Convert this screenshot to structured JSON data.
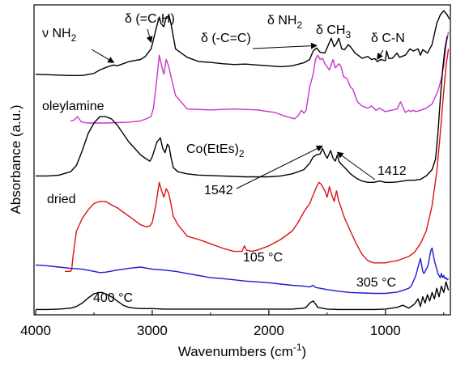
{
  "chart_data": {
    "type": "line",
    "xlabel": "Wavenumbers (cm⁻¹)",
    "ylabel": "Absorbance (a.u.)",
    "xlim": [
      4000,
      450
    ],
    "x_reversed": true,
    "x_ticks": [
      4000,
      3000,
      2000,
      1000
    ],
    "ylim": [
      0,
      7.2
    ],
    "y_ticks_shown": false,
    "grid": false,
    "series": [
      {
        "name": "oleylamine",
        "color": "#000000",
        "x": [
          4000,
          3800,
          3700,
          3600,
          3500,
          3450,
          3380,
          3330,
          3300,
          3200,
          3100,
          3060,
          3010,
          3000,
          2960,
          2940,
          2925,
          2900,
          2880,
          2855,
          2840,
          2820,
          2800,
          2700,
          2600,
          2500,
          2400,
          2300,
          2200,
          2100,
          2000,
          1900,
          1800,
          1700,
          1650,
          1620,
          1590,
          1560,
          1520,
          1465,
          1440,
          1420,
          1400,
          1375,
          1350,
          1320,
          1300,
          1260,
          1200,
          1150,
          1120,
          1090,
          1070,
          1040,
          1000,
          990,
          970,
          940,
          900,
          880,
          830,
          790,
          760,
          720,
          700,
          680,
          640,
          600,
          560,
          530,
          500,
          470,
          450
        ],
        "y": [
          5.6,
          5.58,
          5.57,
          5.57,
          5.62,
          5.7,
          5.78,
          5.82,
          5.8,
          5.9,
          5.95,
          6.02,
          6.2,
          6.3,
          6.75,
          6.95,
          6.8,
          6.72,
          6.95,
          6.98,
          6.8,
          6.5,
          6.2,
          6.0,
          5.9,
          5.88,
          5.85,
          5.83,
          5.84,
          5.82,
          5.8,
          5.78,
          5.8,
          5.87,
          5.95,
          6.15,
          6.22,
          6.12,
          6.1,
          6.45,
          6.25,
          6.33,
          6.45,
          6.2,
          6.18,
          6.3,
          6.25,
          6.1,
          5.98,
          6.02,
          5.95,
          5.97,
          5.9,
          5.95,
          5.92,
          6.15,
          5.97,
          5.98,
          6.1,
          6.0,
          6.05,
          6.2,
          6.15,
          6.2,
          6.05,
          6.18,
          6.1,
          6.3,
          6.8,
          7.0,
          7.1,
          7.0,
          6.9
        ]
      },
      {
        "name": "Co(EtEs)2",
        "color": "#cc33cc",
        "x": [
          3700,
          3670,
          3640,
          3610,
          3560,
          3500,
          3400,
          3300,
          3200,
          3100,
          3050,
          3010,
          2990,
          2960,
          2940,
          2920,
          2900,
          2880,
          2860,
          2840,
          2800,
          2700,
          2500,
          2300,
          2100,
          1950,
          1900,
          1850,
          1780,
          1750,
          1720,
          1700,
          1680,
          1650,
          1620,
          1600,
          1580,
          1560,
          1540,
          1520,
          1480,
          1450,
          1430,
          1400,
          1380,
          1360,
          1330,
          1300,
          1280,
          1240,
          1200,
          1150,
          1120,
          1080,
          1050,
          1000,
          950,
          900,
          870,
          830,
          800,
          780,
          760,
          740,
          700,
          650,
          600,
          550,
          520,
          500,
          480,
          460
        ],
        "y": [
          4.5,
          4.52,
          4.6,
          4.48,
          4.45,
          4.45,
          4.45,
          4.46,
          4.47,
          4.5,
          4.55,
          4.6,
          4.8,
          5.5,
          6.05,
          5.8,
          5.6,
          5.95,
          5.8,
          5.55,
          5.1,
          4.78,
          4.76,
          4.78,
          4.76,
          4.7,
          4.65,
          4.6,
          4.55,
          4.62,
          4.75,
          4.68,
          4.75,
          5.3,
          5.6,
          5.95,
          6.05,
          5.95,
          5.98,
          5.85,
          5.7,
          5.95,
          5.75,
          5.85,
          5.78,
          5.55,
          5.5,
          5.3,
          5.25,
          4.95,
          4.85,
          4.8,
          4.85,
          4.75,
          4.8,
          4.72,
          4.75,
          4.78,
          4.95,
          4.7,
          4.75,
          4.72,
          4.75,
          4.72,
          4.75,
          4.8,
          4.9,
          5.2,
          5.5,
          5.8,
          6.3,
          6.6
        ]
      },
      {
        "name": "dried",
        "color": "#000000",
        "x": [
          4000,
          3900,
          3800,
          3700,
          3650,
          3600,
          3550,
          3500,
          3450,
          3400,
          3350,
          3300,
          3250,
          3200,
          3150,
          3100,
          3050,
          3020,
          3000,
          2960,
          2930,
          2910,
          2890,
          2870,
          2855,
          2840,
          2820,
          2780,
          2700,
          2600,
          2400,
          2200,
          2000,
          1900,
          1800,
          1700,
          1650,
          1620,
          1590,
          1560,
          1540,
          1520,
          1500,
          1470,
          1450,
          1430,
          1412,
          1400,
          1380,
          1350,
          1300,
          1250,
          1200,
          1150,
          1100,
          1050,
          1000,
          950,
          900,
          850,
          800,
          750,
          700,
          650,
          600,
          570,
          550,
          530,
          510,
          490,
          470
        ],
        "y": [
          3.2,
          3.2,
          3.22,
          3.3,
          3.45,
          3.8,
          4.2,
          4.45,
          4.6,
          4.6,
          4.55,
          4.4,
          4.2,
          4.0,
          3.85,
          3.7,
          3.6,
          3.55,
          3.65,
          4.0,
          4.1,
          3.85,
          3.75,
          3.95,
          3.9,
          3.65,
          3.4,
          3.3,
          3.25,
          3.22,
          3.2,
          3.18,
          3.18,
          3.2,
          3.25,
          3.35,
          3.5,
          3.65,
          3.7,
          3.72,
          3.85,
          3.72,
          3.62,
          3.8,
          3.62,
          3.55,
          3.7,
          3.55,
          3.48,
          3.4,
          3.25,
          3.15,
          3.08,
          3.05,
          3.05,
          3.08,
          3.05,
          3.05,
          3.06,
          3.08,
          3.1,
          3.1,
          3.12,
          3.2,
          3.35,
          3.6,
          4.2,
          5.0,
          5.7,
          6.2,
          6.5
        ]
      },
      {
        "name": "105 °C",
        "color": "#dd1111",
        "x": [
          3750,
          3700,
          3690,
          3680,
          3650,
          3600,
          3550,
          3500,
          3450,
          3400,
          3350,
          3300,
          3250,
          3200,
          3150,
          3100,
          3050,
          3020,
          3000,
          2970,
          2940,
          2920,
          2900,
          2880,
          2860,
          2840,
          2820,
          2780,
          2700,
          2600,
          2500,
          2400,
          2300,
          2230,
          2210,
          2190,
          2150,
          2100,
          2000,
          1900,
          1800,
          1750,
          1700,
          1650,
          1620,
          1590,
          1570,
          1550,
          1520,
          1500,
          1480,
          1460,
          1440,
          1420,
          1400,
          1380,
          1350,
          1300,
          1250,
          1200,
          1150,
          1100,
          1050,
          1000,
          950,
          900,
          850,
          800,
          750,
          700,
          650,
          600,
          560,
          530,
          500,
          480,
          460
        ],
        "y": [
          0.95,
          0.95,
          1.0,
          1.3,
          1.9,
          2.2,
          2.4,
          2.55,
          2.6,
          2.6,
          2.52,
          2.45,
          2.35,
          2.25,
          2.15,
          2.05,
          2.0,
          2.02,
          2.1,
          2.5,
          3.05,
          2.85,
          2.7,
          2.9,
          2.8,
          2.55,
          2.25,
          2.05,
          1.78,
          1.7,
          1.6,
          1.5,
          1.42,
          1.42,
          1.55,
          1.45,
          1.42,
          1.45,
          1.55,
          1.7,
          1.9,
          2.1,
          2.35,
          2.55,
          2.75,
          2.95,
          3.05,
          3.0,
          2.85,
          2.7,
          2.95,
          2.75,
          2.6,
          2.85,
          2.6,
          2.45,
          2.2,
          1.9,
          1.6,
          1.35,
          1.2,
          1.15,
          1.15,
          1.15,
          1.18,
          1.2,
          1.25,
          1.3,
          1.4,
          1.6,
          1.9,
          2.5,
          3.3,
          4.2,
          5.2,
          5.8,
          6.2
        ]
      },
      {
        "name": "305 °C",
        "color": "#1a1acc",
        "x": [
          4000,
          3900,
          3800,
          3700,
          3600,
          3500,
          3450,
          3400,
          3300,
          3200,
          3100,
          3000,
          2900,
          2800,
          2700,
          2600,
          2500,
          2400,
          2300,
          2200,
          2100,
          2000,
          1900,
          1800,
          1700,
          1650,
          1620,
          1600,
          1560,
          1500,
          1400,
          1300,
          1200,
          1100,
          1000,
          900,
          850,
          800,
          780,
          760,
          740,
          720,
          700,
          690,
          680,
          670,
          660,
          650,
          640,
          630,
          620,
          610,
          600,
          590,
          580,
          570,
          560,
          550,
          540,
          530,
          520,
          510,
          500,
          490,
          480,
          470,
          460
        ],
        "y": [
          1.1,
          1.08,
          1.05,
          1.02,
          1.0,
          0.95,
          0.92,
          0.93,
          0.98,
          1.02,
          1.05,
          1.0,
          0.98,
          0.95,
          0.9,
          0.85,
          0.8,
          0.78,
          0.75,
          0.72,
          0.7,
          0.68,
          0.65,
          0.62,
          0.6,
          0.58,
          0.62,
          0.57,
          0.55,
          0.52,
          0.48,
          0.45,
          0.44,
          0.43,
          0.43,
          0.46,
          0.5,
          0.55,
          0.6,
          0.72,
          0.85,
          1.05,
          1.25,
          1.1,
          0.95,
          0.9,
          0.95,
          1.0,
          1.05,
          1.15,
          1.3,
          1.45,
          1.5,
          1.35,
          1.2,
          1.1,
          1.0,
          0.9,
          0.85,
          0.8,
          0.9,
          0.8,
          0.85,
          0.78,
          0.8,
          0.75,
          0.78
        ]
      },
      {
        "name": "400 °C",
        "color": "#000000",
        "x": [
          4000,
          3900,
          3800,
          3700,
          3650,
          3600,
          3550,
          3500,
          3460,
          3430,
          3400,
          3350,
          3300,
          3250,
          3200,
          3150,
          3100,
          3000,
          2900,
          2800,
          2600,
          2400,
          2200,
          2000,
          1800,
          1700,
          1680,
          1650,
          1620,
          1600,
          1580,
          1500,
          1400,
          1300,
          1200,
          1100,
          1000,
          900,
          850,
          800,
          750,
          720,
          700,
          680,
          660,
          640,
          620,
          600,
          580,
          560,
          540,
          520,
          500,
          480,
          460
        ],
        "y": [
          0.05,
          0.05,
          0.06,
          0.08,
          0.12,
          0.2,
          0.32,
          0.42,
          0.45,
          0.45,
          0.42,
          0.35,
          0.25,
          0.15,
          0.1,
          0.08,
          0.07,
          0.07,
          0.06,
          0.06,
          0.06,
          0.06,
          0.06,
          0.06,
          0.06,
          0.08,
          0.1,
          0.2,
          0.25,
          0.18,
          0.1,
          0.06,
          0.05,
          0.05,
          0.05,
          0.05,
          0.06,
          0.1,
          0.15,
          0.08,
          0.18,
          0.3,
          0.12,
          0.35,
          0.2,
          0.4,
          0.25,
          0.45,
          0.3,
          0.55,
          0.35,
          0.6,
          0.45,
          0.7,
          0.5
        ]
      }
    ],
    "curve_labels": [
      {
        "text": "oleylamine",
        "series": "oleylamine"
      },
      {
        "text": "Co(EtEs)2",
        "series": "Co(EtEs)2"
      },
      {
        "text": "dried",
        "series": "dried"
      },
      {
        "text": "105 °C",
        "series": "105 °C"
      },
      {
        "text": "305 °C",
        "series": "305 °C"
      },
      {
        "text": "400 °C",
        "series": "400 °C"
      }
    ],
    "annotations": [
      {
        "text": "ν NH2",
        "arrow_to": [
          3330,
          5.82
        ]
      },
      {
        "text": "δ (=C-H)",
        "arrow_to": [
          3010,
          6.3
        ]
      },
      {
        "text": "δ (-C=C)",
        "arrow_to": [
          1590,
          6.22
        ]
      },
      {
        "text": "δ NH2",
        "arrow_to": null
      },
      {
        "text": "δ CH3",
        "arrow_to": null
      },
      {
        "text": "δ C-N",
        "arrow_to": [
          1070,
          5.9
        ]
      },
      {
        "text": "1542",
        "arrow_to": [
          1542,
          3.85
        ]
      },
      {
        "text": "1412",
        "arrow_to": [
          1412,
          3.7
        ]
      }
    ]
  }
}
